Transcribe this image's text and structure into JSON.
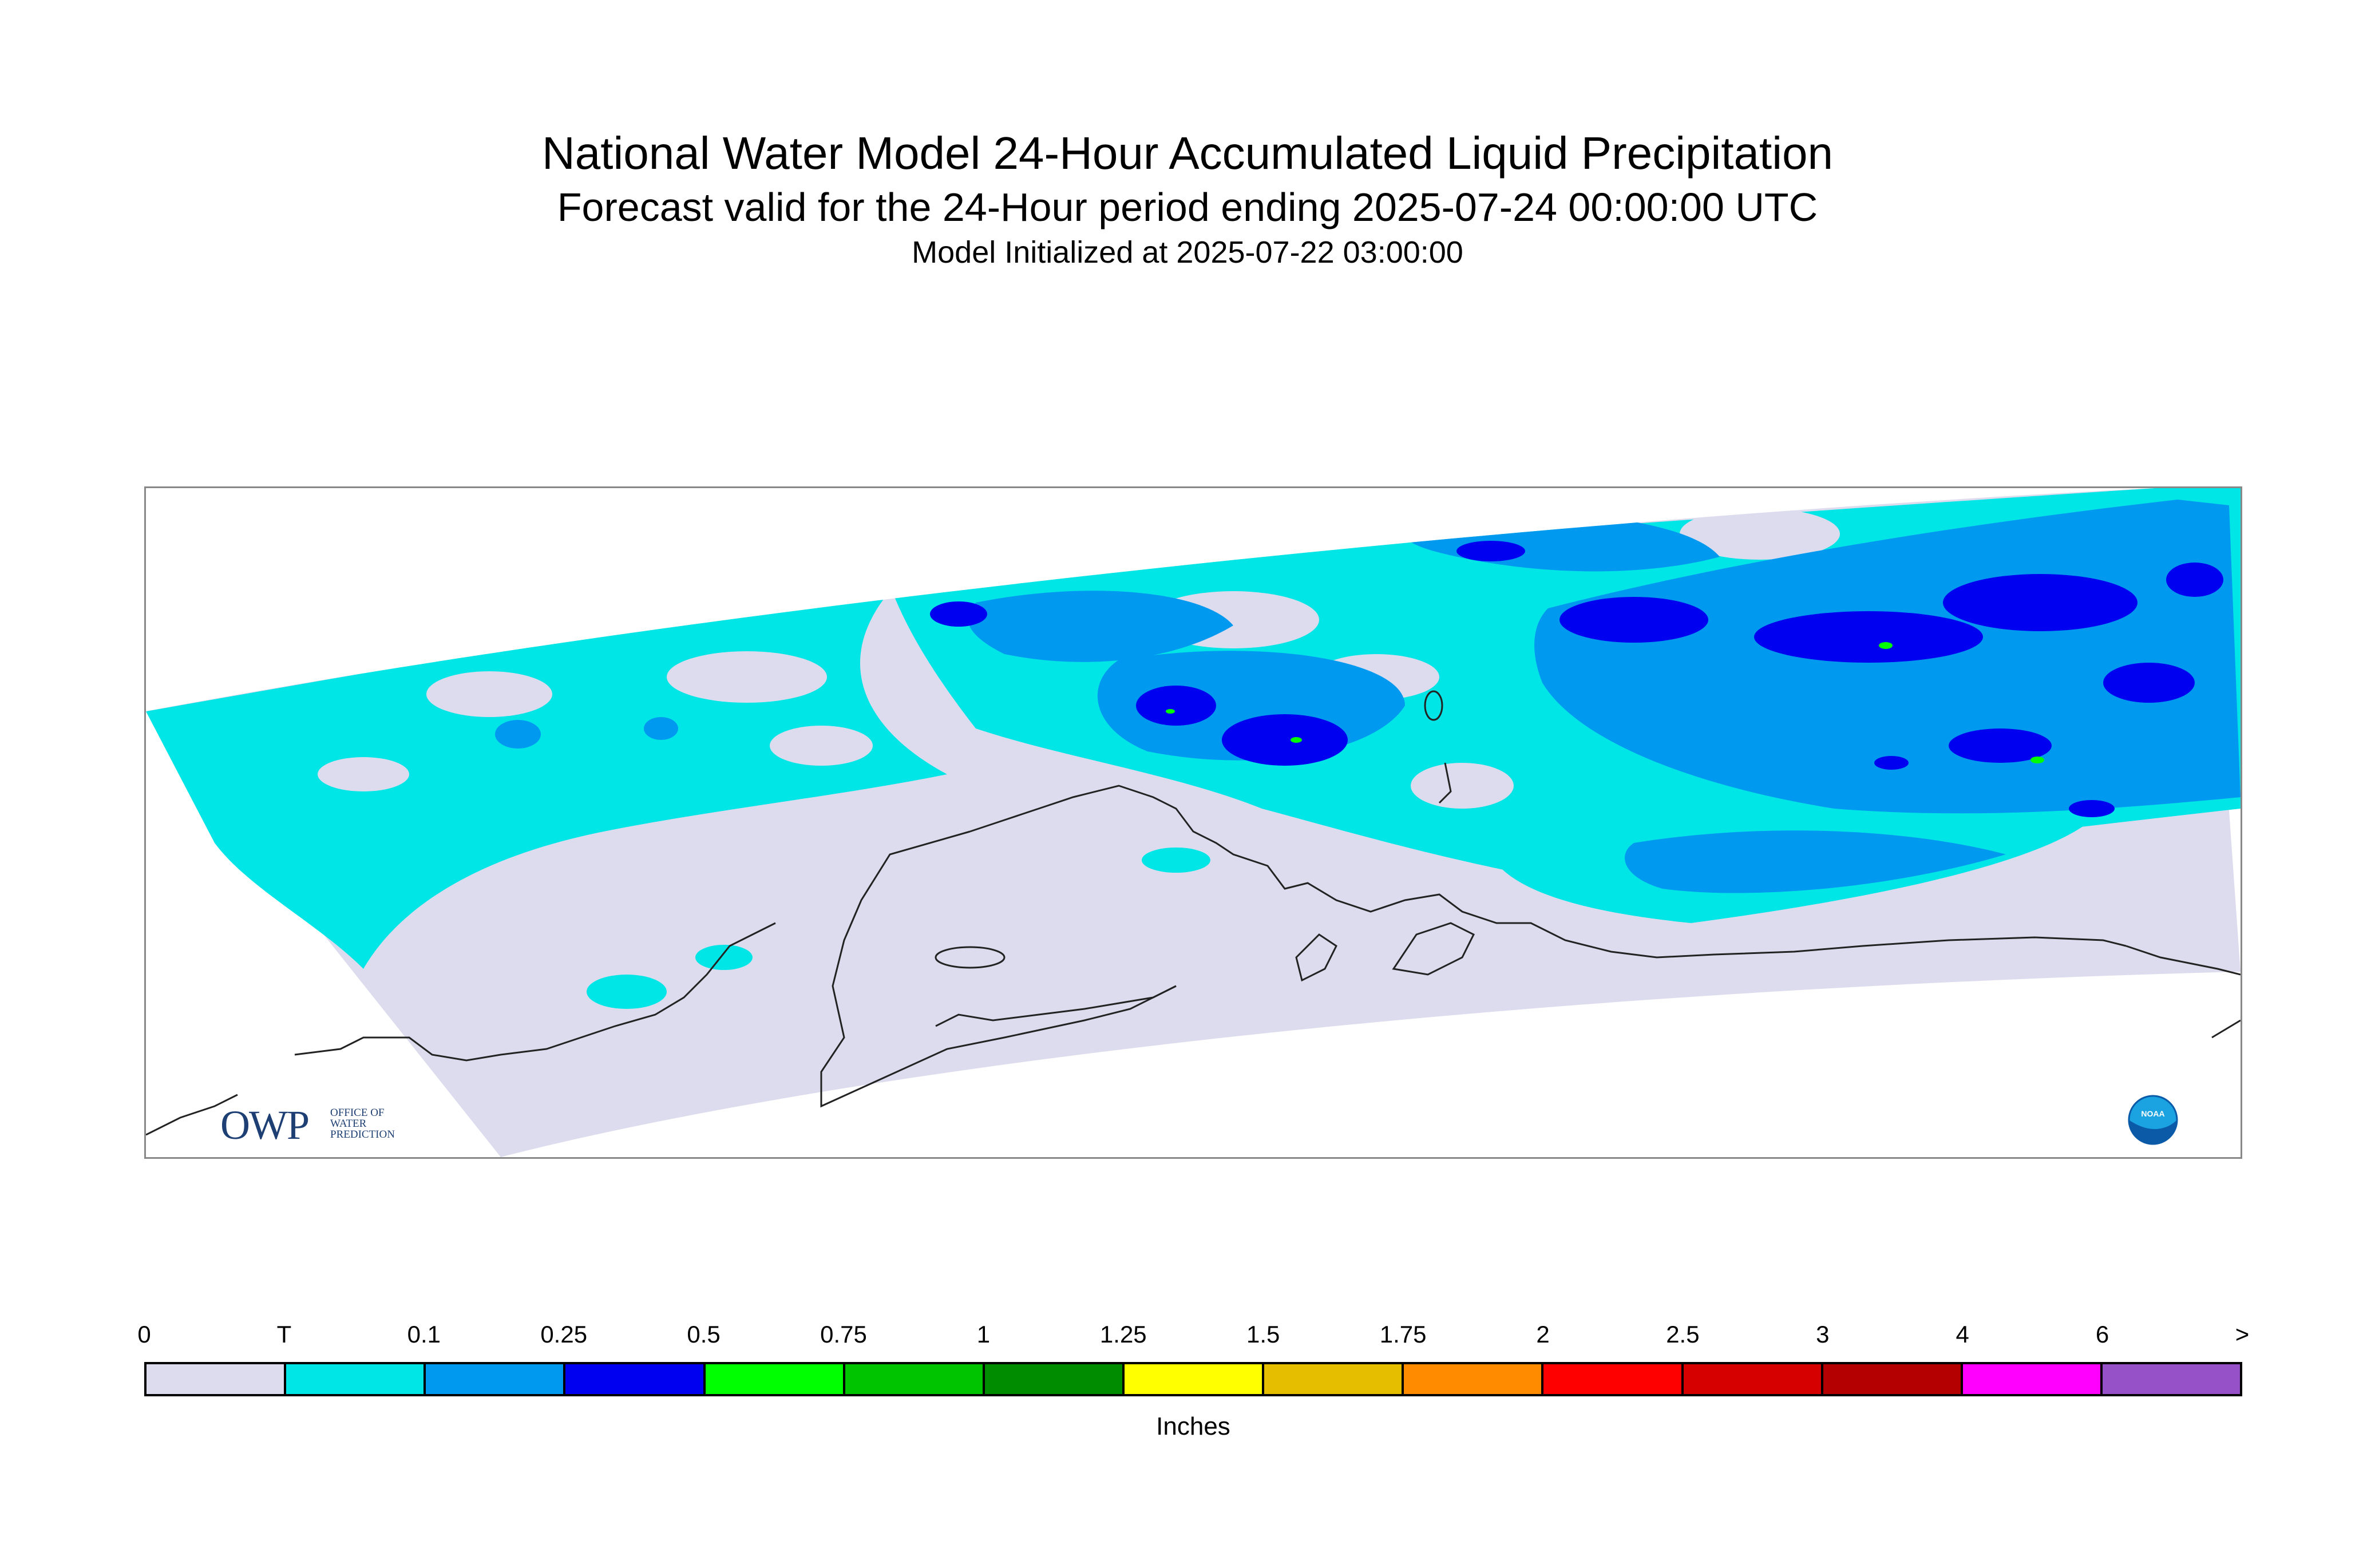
{
  "title": "National Water Model 24-Hour Accumulated Liquid Precipitation",
  "subtitle": "Forecast valid for the 24-Hour period ending 2025-07-24 00:00:00 UTC",
  "init_line": "Model Initialized at 2025-07-22 03:00:00",
  "logos": {
    "owp_main": "OWP",
    "owp_lines": [
      "OFFICE OF",
      "WATER",
      "PREDICTION"
    ],
    "noaa": "NOAA"
  },
  "legend": {
    "units": "Inches",
    "tick_labels": [
      "0",
      "T",
      "0.1",
      "0.25",
      "0.5",
      "0.75",
      "1",
      "1.25",
      "1.5",
      "1.75",
      "2",
      "2.5",
      "3",
      "4",
      "6",
      ">"
    ],
    "colors": [
      "#dcdcee",
      "#00e5e5",
      "#0099f0",
      "#0000f0",
      "#00ff00",
      "#00c400",
      "#008c00",
      "#ffff00",
      "#e6be00",
      "#ff8c00",
      "#ff0000",
      "#d70000",
      "#b40000",
      "#ff00ff",
      "#9650c8"
    ]
  }
}
